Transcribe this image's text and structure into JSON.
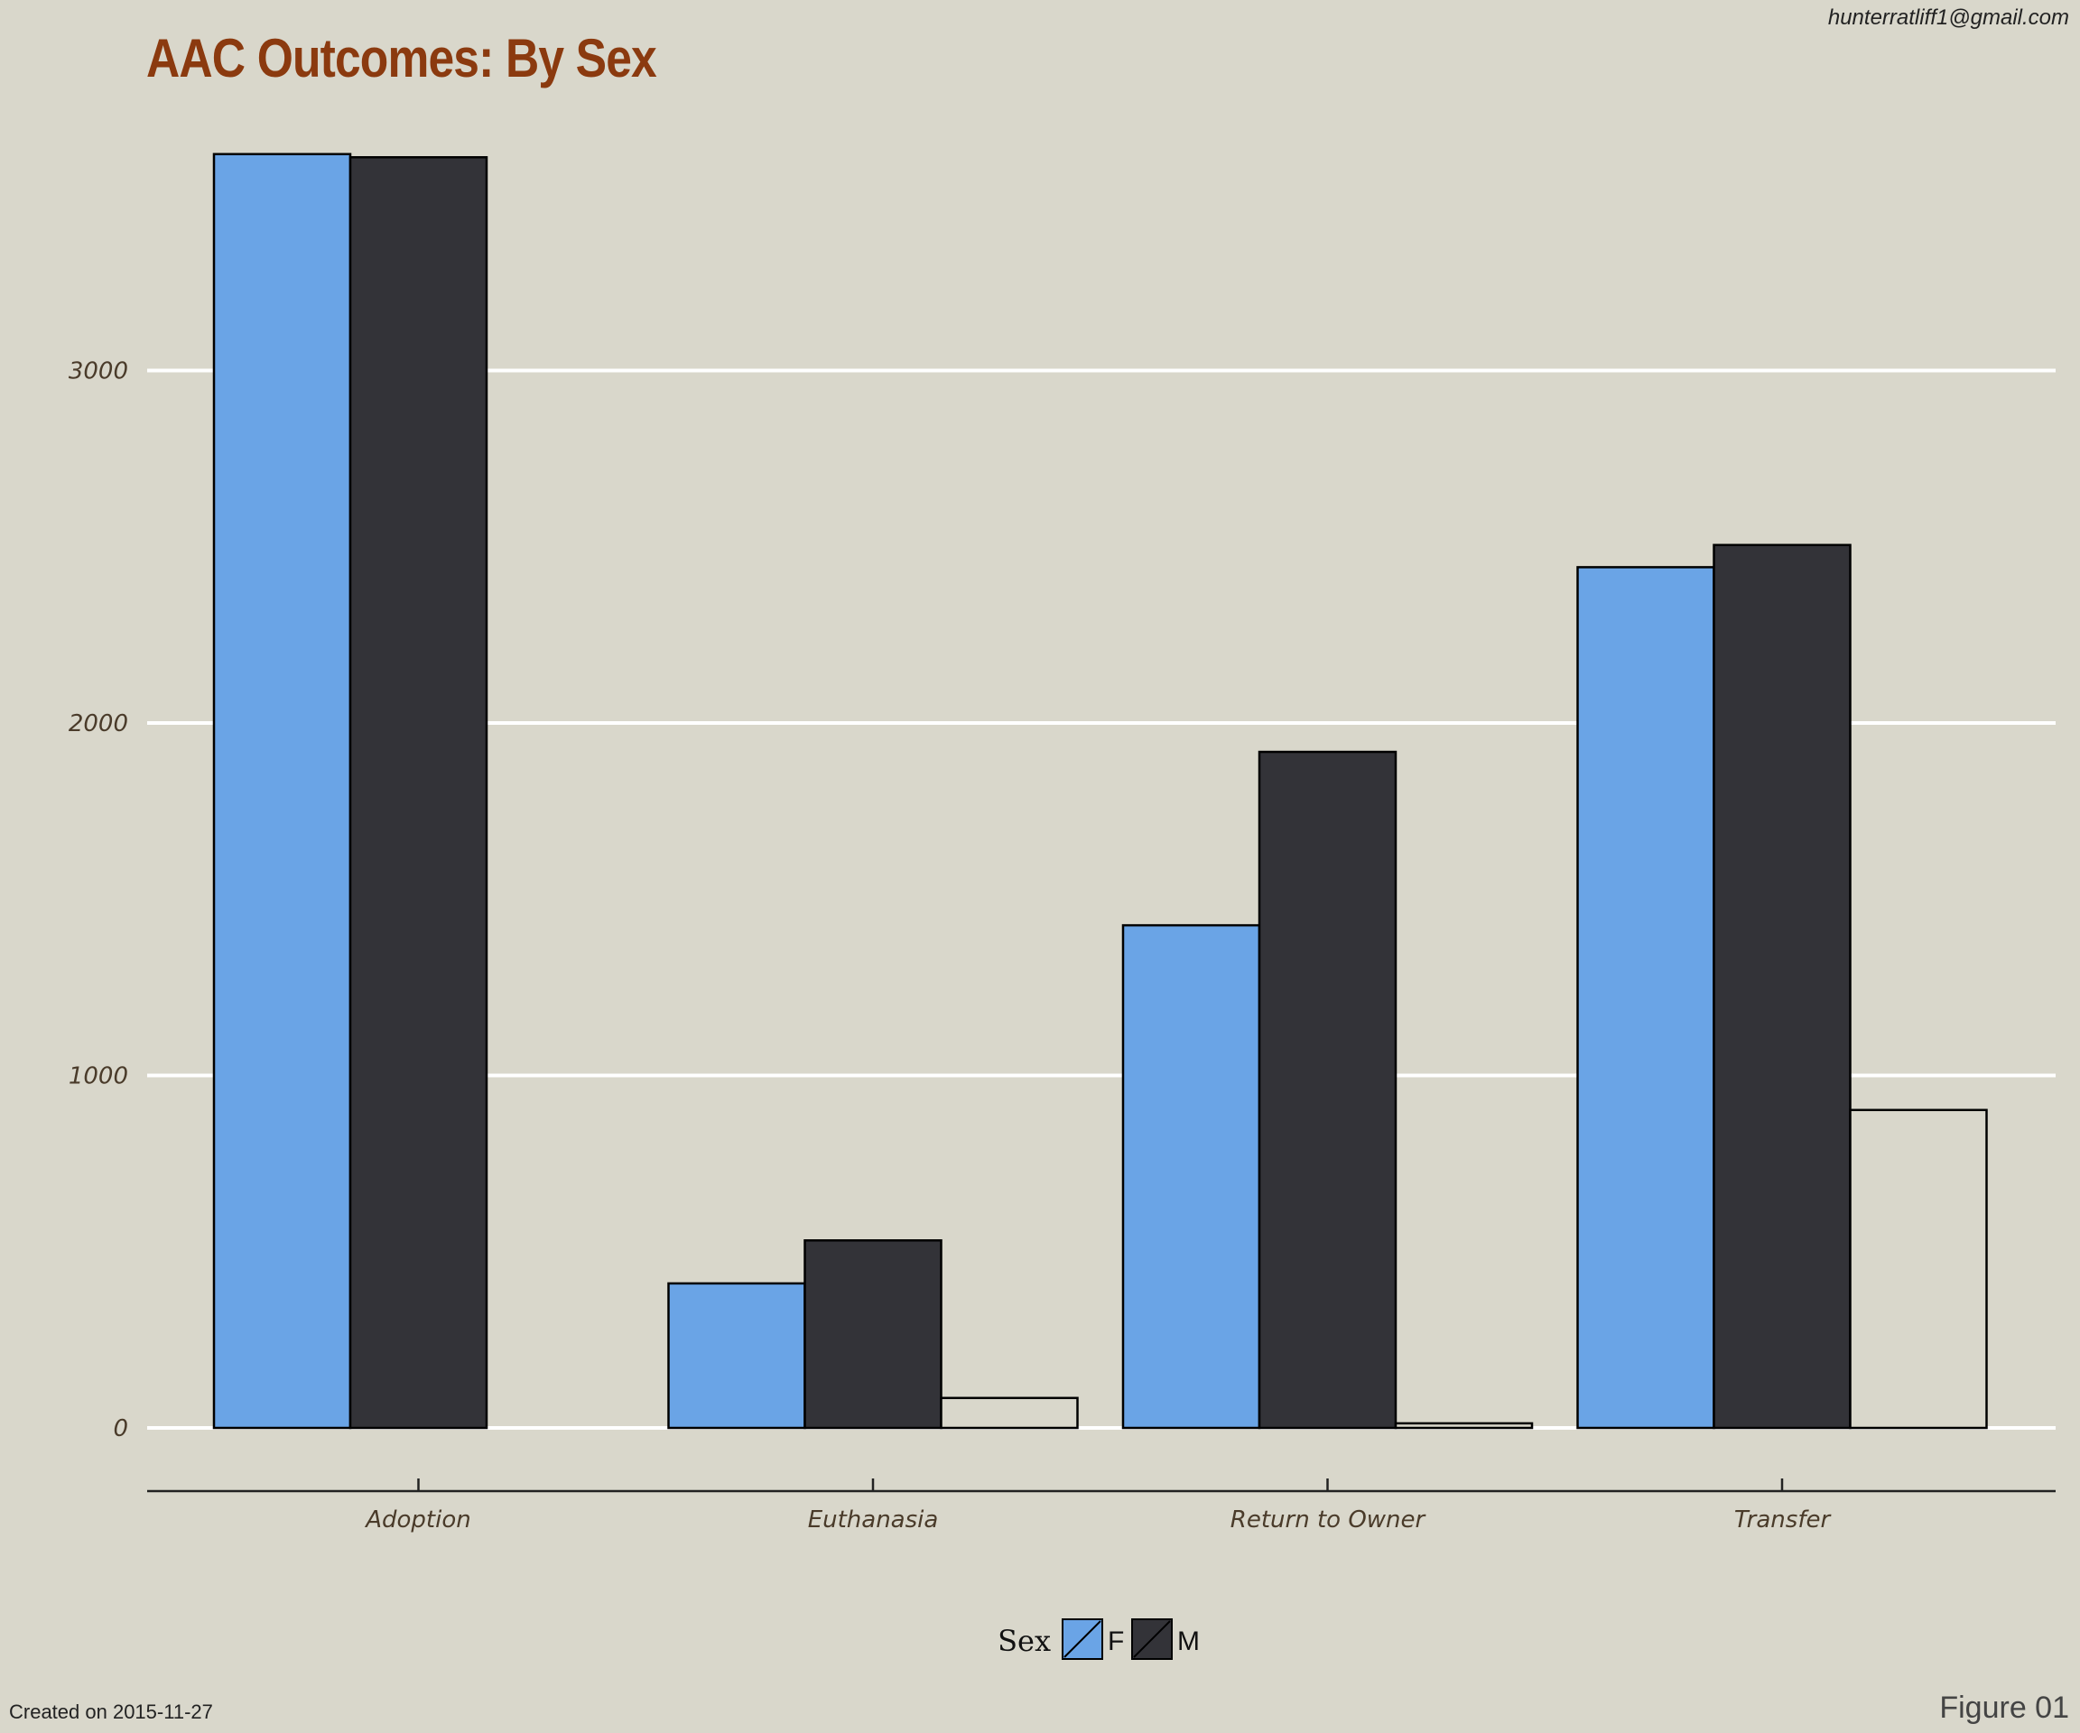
{
  "title": "AAC Outcomes: By Sex",
  "credit": "hunterratliff1@gmail.com",
  "created": "Created on 2015-11-27",
  "figure_label": "Figure 01",
  "colors": {
    "background": "#d9d7cb",
    "title": "#8b3a0f",
    "grid": "#ffffff",
    "tick_label": "#4a3b2a",
    "F": "#6aa4e6",
    "M": "#333338",
    "missing": "#d9d7cb"
  },
  "chart_data": {
    "type": "bar",
    "title": "AAC Outcomes: By Sex",
    "xlabel": "",
    "ylabel": "",
    "categories": [
      "Adoption",
      "Euthanasia",
      "Return to Owner",
      "Transfer"
    ],
    "series": [
      {
        "name": "F",
        "color": "#6aa4e6",
        "values": [
          3614,
          410,
          1426,
          2442
        ]
      },
      {
        "name": "M",
        "color": "#333338",
        "values": [
          3605,
          532,
          1918,
          2505
        ]
      },
      {
        "name": "",
        "color": "#d9d7cb",
        "values": [
          0,
          85,
          13,
          902
        ]
      }
    ],
    "yticks": [
      0,
      1000,
      2000,
      3000
    ],
    "ylim": [
      0,
      3780
    ],
    "grid": true,
    "legend": {
      "title": "Sex",
      "position": "bottom",
      "entries": [
        "F",
        "M"
      ]
    }
  }
}
